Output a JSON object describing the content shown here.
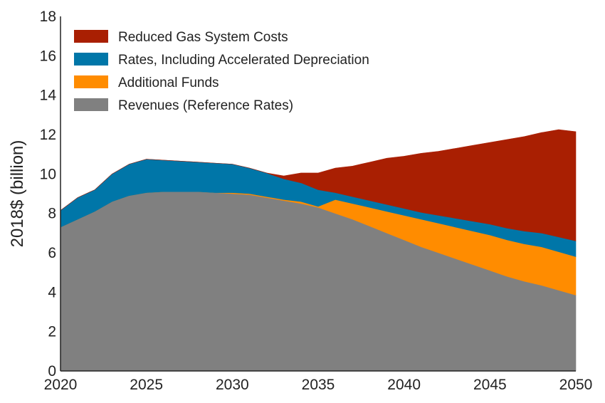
{
  "chart_data": {
    "type": "area",
    "stacked": true,
    "title": "",
    "xlabel": "",
    "ylabel": "2018$ (billion)",
    "xlim": [
      2020,
      2050
    ],
    "ylim": [
      0,
      18
    ],
    "x_ticks": [
      2020,
      2025,
      2030,
      2035,
      2040,
      2045,
      2050
    ],
    "y_ticks": [
      0,
      2,
      4,
      6,
      8,
      10,
      12,
      14,
      16,
      18
    ],
    "grid": false,
    "legend_position": "top-left",
    "x": [
      2020,
      2021,
      2022,
      2023,
      2024,
      2025,
      2026,
      2027,
      2028,
      2029,
      2030,
      2031,
      2032,
      2033,
      2034,
      2035,
      2036,
      2037,
      2038,
      2039,
      2040,
      2041,
      2042,
      2043,
      2044,
      2045,
      2046,
      2047,
      2048,
      2049,
      2050
    ],
    "series": [
      {
        "name": "Revenues (Reference Rates)",
        "color": "#808080",
        "values": [
          7.3,
          7.7,
          8.1,
          8.6,
          8.9,
          9.05,
          9.1,
          9.1,
          9.1,
          9.05,
          9.0,
          8.95,
          8.8,
          8.65,
          8.5,
          8.3,
          8.0,
          7.7,
          7.35,
          7.0,
          6.65,
          6.3,
          6.0,
          5.7,
          5.4,
          5.1,
          4.8,
          4.55,
          4.35,
          4.1,
          3.85
        ]
      },
      {
        "name": "Additional Funds",
        "color": "#ff8c00",
        "values": [
          0,
          0,
          0,
          0,
          0,
          0,
          0,
          0,
          0,
          0,
          0.05,
          0.05,
          0.05,
          0.05,
          0.1,
          0.05,
          0.7,
          0.8,
          0.95,
          1.1,
          1.25,
          1.4,
          1.5,
          1.6,
          1.7,
          1.8,
          1.85,
          1.9,
          1.95,
          1.95,
          1.95
        ]
      },
      {
        "name": "Rates, Including Accelerated Depreciation",
        "color": "#0076a8",
        "values": [
          0.85,
          1.1,
          1.1,
          1.4,
          1.6,
          1.7,
          1.6,
          1.55,
          1.5,
          1.5,
          1.45,
          1.3,
          1.2,
          1.05,
          0.95,
          0.85,
          0.35,
          0.35,
          0.35,
          0.35,
          0.35,
          0.35,
          0.4,
          0.45,
          0.5,
          0.55,
          0.6,
          0.65,
          0.7,
          0.75,
          0.8
        ]
      },
      {
        "name": "Reduced Gas System Costs",
        "color": "#a91f02",
        "values": [
          0,
          0,
          0,
          0,
          0,
          0,
          0,
          0,
          0,
          0,
          0,
          0,
          0,
          0.15,
          0.5,
          0.85,
          1.25,
          1.55,
          1.95,
          2.35,
          2.65,
          3.0,
          3.25,
          3.55,
          3.85,
          4.15,
          4.5,
          4.8,
          5.1,
          5.45,
          5.55
        ]
      }
    ],
    "legend_order": [
      "Reduced Gas System Costs",
      "Rates, Including Accelerated Depreciation",
      "Additional Funds",
      "Revenues (Reference Rates)"
    ]
  }
}
